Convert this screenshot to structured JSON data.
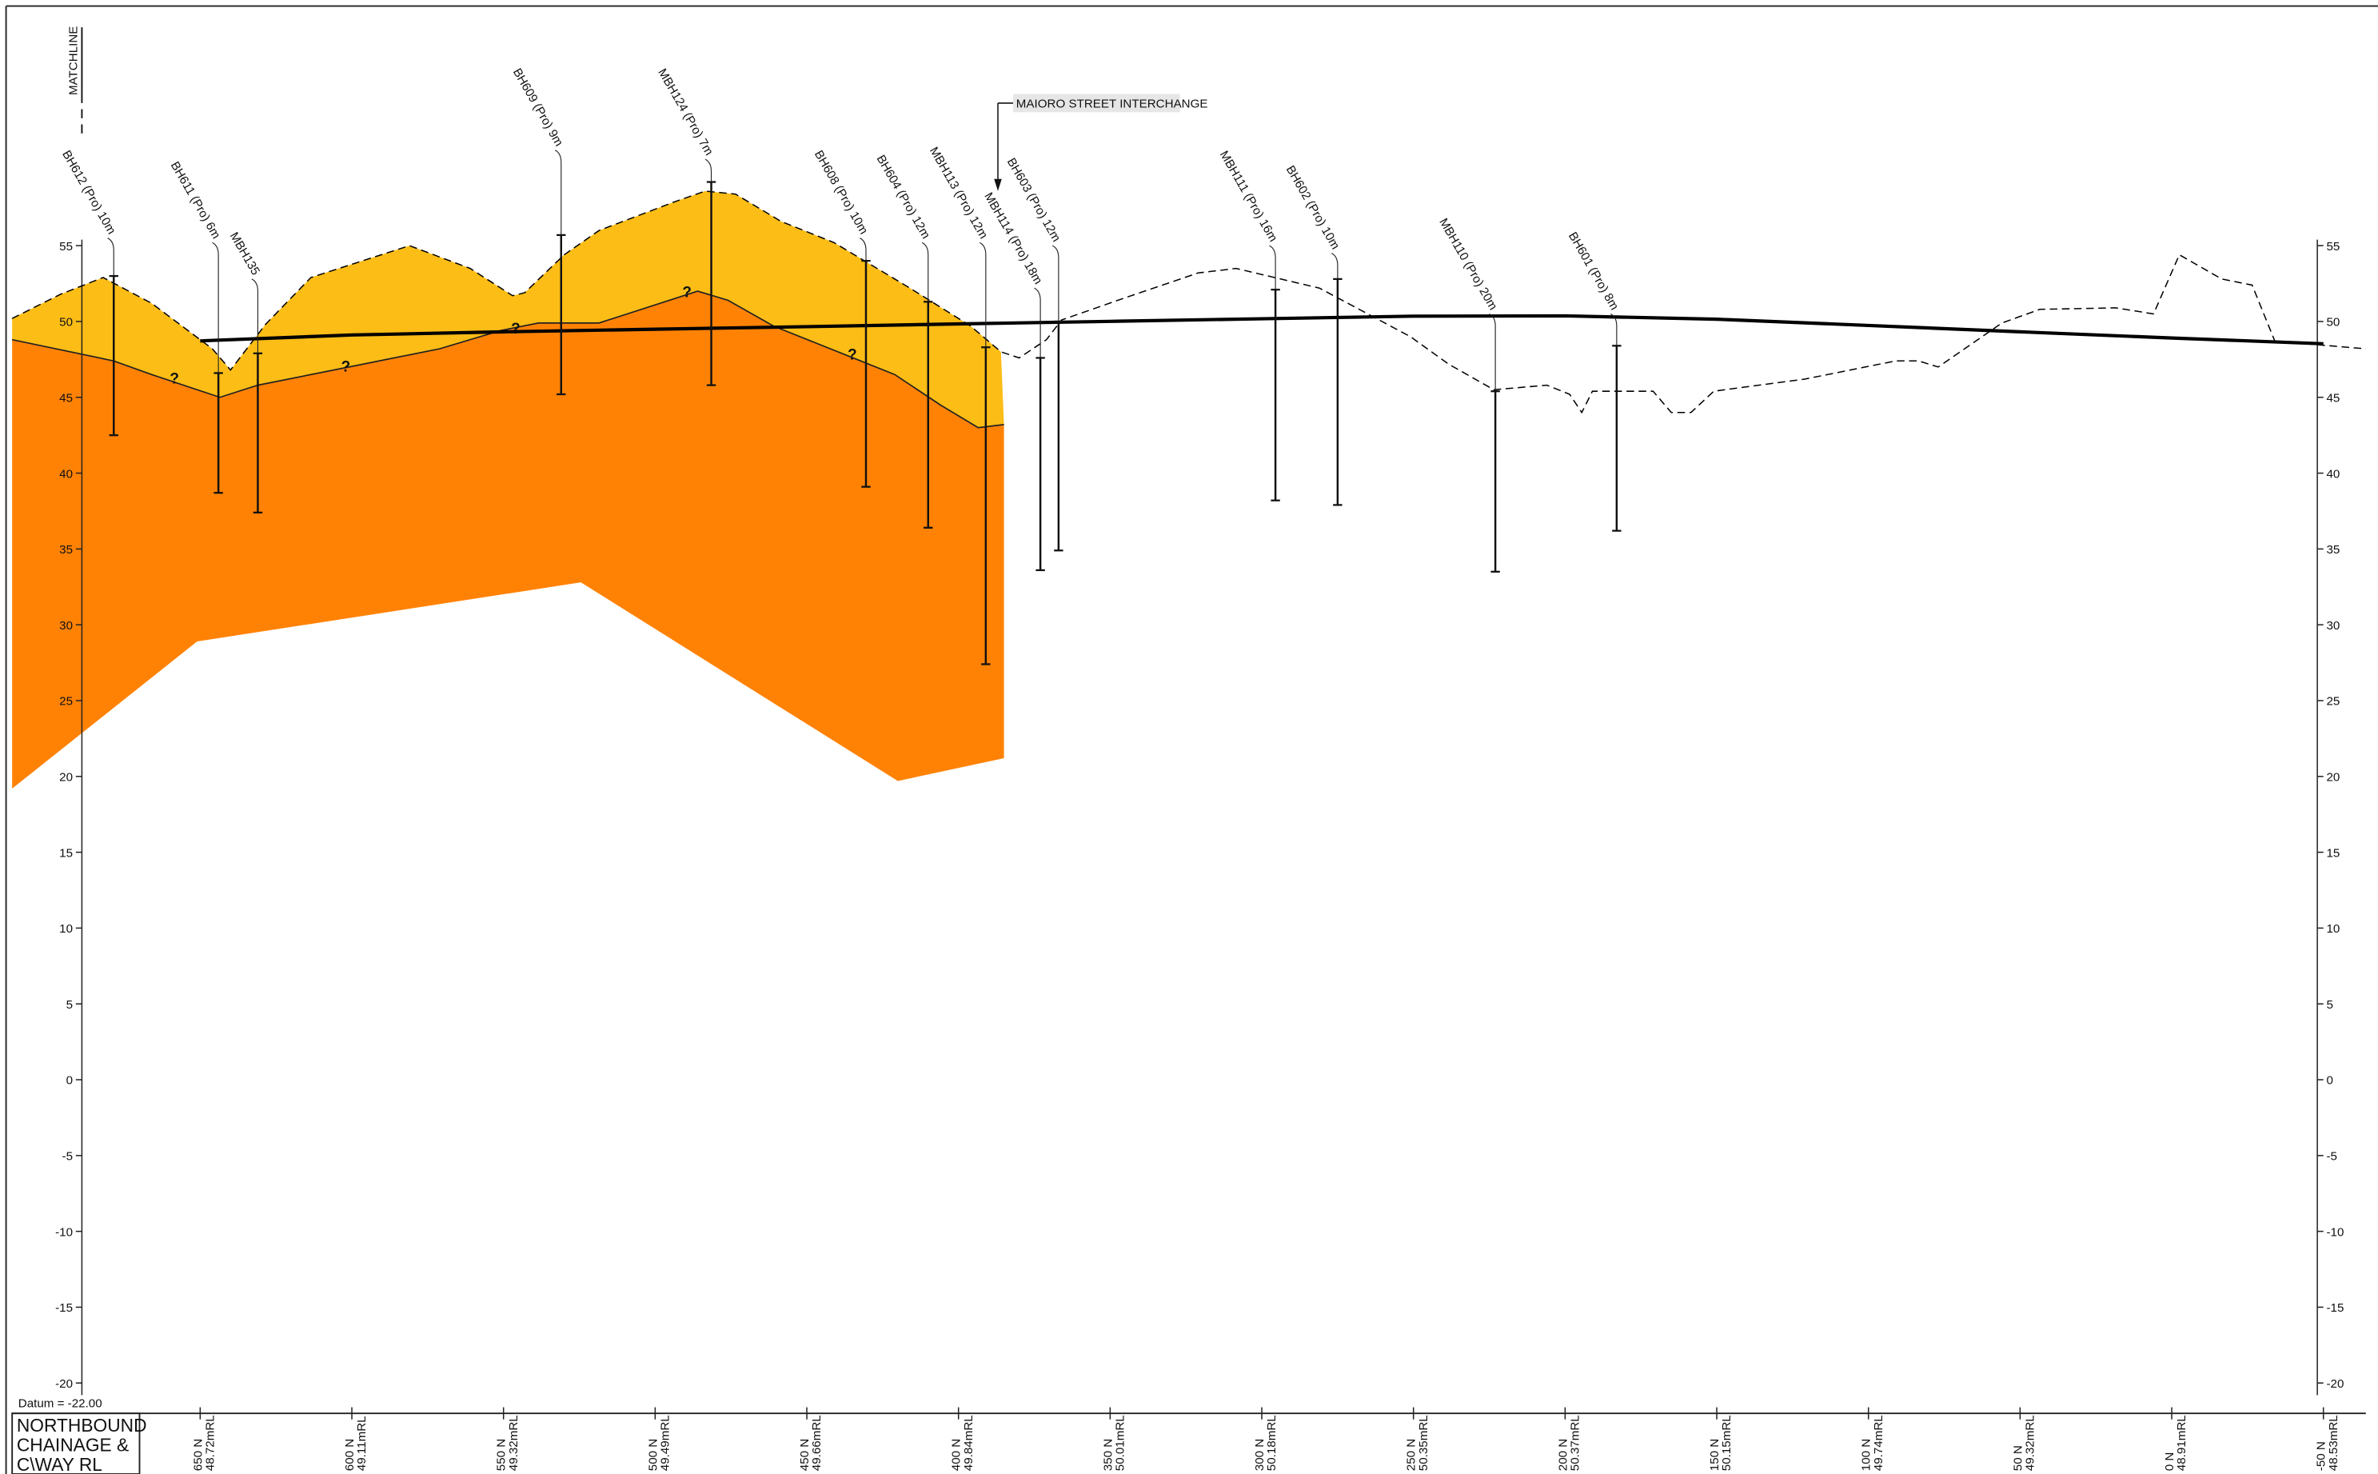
{
  "chart_data": {
    "type": "line",
    "xlim": [
      712,
      -64
    ],
    "ylim": [
      -22,
      71
    ],
    "yticks": [
      55,
      50,
      45,
      40,
      35,
      30,
      25,
      20,
      15,
      10,
      5,
      0,
      -5,
      -10,
      -15,
      -20
    ],
    "xticks": [
      {
        "value": 650,
        "label": "650 N"
      },
      {
        "value": 600,
        "label": "600 N"
      },
      {
        "value": 550,
        "label": "550 N"
      },
      {
        "value": 500,
        "label": "500 N"
      },
      {
        "value": 450,
        "label": "450 N"
      },
      {
        "value": 400,
        "label": "400 N"
      },
      {
        "value": 350,
        "label": "350 N"
      },
      {
        "value": 300,
        "label": "300 N"
      },
      {
        "value": 250,
        "label": "250 N"
      },
      {
        "value": 200,
        "label": "200 N"
      },
      {
        "value": 150,
        "label": "150 N"
      },
      {
        "value": 100,
        "label": "100 N"
      },
      {
        "value": 50,
        "label": "50 N"
      },
      {
        "value": 0,
        "label": "0 N"
      },
      {
        "value": -50,
        "label": "-50 N"
      }
    ],
    "axis_label": [
      "NORTHBOUND",
      "CHAINAGE &",
      "C\\WAY RL"
    ],
    "series": [
      {
        "color": "#000000",
        "dashed": true,
        "x": [
          712,
          696,
          682,
          666,
          646,
          640,
          628.5,
          613.5,
          581,
          561,
          547,
          543,
          530,
          518.5,
          493.5,
          483.5,
          473.5,
          458.5,
          441,
          416,
          396,
          386,
          380,
          371,
          366,
          346,
          321,
          308.5,
          281,
          251,
          238.5,
          223.5,
          206,
          198.5,
          194.5,
          191,
          171,
          165,
          158.5,
          151,
          121,
          91,
          83.5,
          77,
          56,
          43.5,
          18.5,
          6,
          -2.5,
          -16.5,
          -26.5,
          -34,
          -64
        ],
        "values": [
          50.2,
          51.8,
          52.9,
          51.2,
          48.2,
          46.8,
          49.8,
          52.9,
          55.0,
          53.5,
          51.7,
          51.9,
          54.4,
          56.0,
          57.9,
          58.6,
          58.4,
          56.6,
          55.2,
          52.2,
          49.7,
          48.0,
          47.6,
          48.8,
          50.1,
          51.5,
          53.2,
          53.5,
          52.2,
          49.0,
          47.2,
          45.5,
          45.8,
          45.2,
          44.0,
          45.4,
          45.4,
          44.0,
          44.0,
          45.4,
          46.2,
          47.4,
          47.4,
          47.0,
          49.9,
          50.8,
          50.9,
          50.5,
          54.4,
          52.8,
          52.4,
          48.7,
          48.2
        ]
      },
      {
        "color": "#000000",
        "dashed": false,
        "x": [
          650,
          600,
          550,
          500,
          450,
          400,
          350,
          300,
          250,
          200,
          150,
          100,
          50,
          0,
          -50
        ],
        "values": [
          48.72,
          49.11,
          49.32,
          49.49,
          49.66,
          49.84,
          50.01,
          50.18,
          50.35,
          50.37,
          50.15,
          49.74,
          49.32,
          48.91,
          48.53
        ],
        "value_labels": [
          "48.72mRL",
          "49.11mRL",
          "49.32mRL",
          "49.49mRL",
          "49.66mRL",
          "49.84mRL",
          "50.01mRL",
          "50.18mRL",
          "50.35mRL",
          "50.37mRL",
          "50.15mRL",
          "49.74mRL",
          "49.32mRL",
          "48.91mRL",
          "48.53mRL"
        ]
      }
    ],
    "geology": {
      "upper_color": "#fbbd16",
      "lower_color": "#ff8205",
      "boundary": {
        "x": [
          712,
          678.5,
          666,
          643.5,
          631,
          601,
          571,
          551,
          538.5,
          518.5,
          486,
          476,
          461,
          436,
          421,
          406,
          393.5,
          385
        ],
        "values": [
          48.8,
          47.4,
          46.5,
          45.0,
          45.8,
          47.0,
          48.2,
          49.4,
          49.9,
          49.9,
          52.0,
          51.4,
          49.7,
          47.7,
          46.5,
          44.5,
          43.0,
          43.2
        ]
      },
      "base": {
        "x": [
          712,
          651,
          524.5,
          420,
          385
        ],
        "values": [
          19.2,
          28.9,
          32.8,
          19.7,
          21.2
        ]
      }
    },
    "query_marks": {
      "text": "?",
      "x": [
        658.5,
        602,
        546,
        489.5,
        435
      ],
      "values": [
        46.2,
        47.0,
        49.5,
        51.9,
        47.8
      ]
    },
    "boreholes": [
      {
        "label": "BH612 (Pro) 10m",
        "x": 678.5,
        "top": 53.0,
        "bottom": 42.5
      },
      {
        "label": "BH611 (Pro) 6m",
        "x": 644,
        "top": 46.6,
        "bottom": 38.7
      },
      {
        "label": "MBH135",
        "x": 631,
        "top": 47.9,
        "bottom": 37.4
      },
      {
        "label": "BH609 (Pro) 9m",
        "x": 531,
        "top": 55.7,
        "bottom": 45.2
      },
      {
        "label": "MBH124 (Pro) 7m",
        "x": 481.5,
        "top": 59.2,
        "bottom": 45.8
      },
      {
        "label": "BH608 (Pro) 10m",
        "x": 430.5,
        "top": 54.0,
        "bottom": 39.1
      },
      {
        "label": "BH604 (Pro) 12m",
        "x": 410,
        "top": 51.3,
        "bottom": 36.4
      },
      {
        "label": "MBH113 (Pro) 12m",
        "x": 391,
        "top": 48.3,
        "bottom": 27.4
      },
      {
        "label": "MBH114 (Pro) 18m",
        "x": 373,
        "top": 47.6,
        "bottom": 33.6
      },
      {
        "label": "BH603 (Pro) 12m",
        "x": 367,
        "top": 50.0,
        "bottom": 34.9
      },
      {
        "label": "MBH111 (Pro) 16m",
        "x": 295.5,
        "top": 52.1,
        "bottom": 38.2
      },
      {
        "label": "BH602 (Pro) 10m",
        "x": 275,
        "top": 52.8,
        "bottom": 37.9
      },
      {
        "label": "MBH110 (Pro) 20m",
        "x": 223,
        "top": 45.4,
        "bottom": 33.5
      },
      {
        "label": "BH601 (Pro) 8m",
        "x": 183,
        "top": 48.4,
        "bottom": 36.2
      }
    ],
    "annotations": {
      "matchline": "MATCHLINE",
      "interchange": "MAIORO STREET INTERCHANGE",
      "datum": "Datum = -22.00"
    }
  }
}
